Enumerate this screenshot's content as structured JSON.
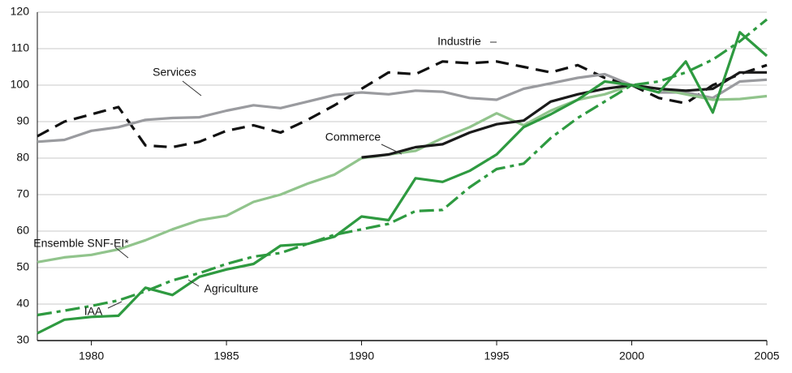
{
  "chart_data": {
    "type": "line",
    "x": [
      1978,
      1979,
      1980,
      1981,
      1982,
      1983,
      1984,
      1985,
      1986,
      1987,
      1988,
      1989,
      1990,
      1991,
      1992,
      1993,
      1994,
      1995,
      1996,
      1997,
      1998,
      1999,
      2000,
      2001,
      2002,
      2003,
      2004,
      2005
    ],
    "xlim": [
      1978,
      2005
    ],
    "xticks": [
      1980,
      1985,
      1990,
      1995,
      2000,
      2005
    ],
    "ylim": [
      30,
      120
    ],
    "yticks": [
      30,
      40,
      50,
      60,
      70,
      80,
      90,
      100,
      110,
      120
    ],
    "grid": true,
    "series": [
      {
        "name": "Industrie",
        "color": "#111111",
        "dash": "dashed",
        "values": [
          86,
          90,
          92,
          94,
          83.5,
          83,
          84.5,
          87.5,
          89,
          87,
          90.5,
          94.5,
          99,
          103.5,
          103,
          106.5,
          106,
          106.5,
          105,
          103.5,
          105.5,
          102,
          100,
          96.5,
          95,
          100,
          103,
          105.5
        ]
      },
      {
        "name": "Services",
        "color": "#9a9b9f",
        "dash": "solid",
        "values": [
          84.5,
          85,
          87.5,
          88.5,
          90.5,
          91,
          91.2,
          93,
          94.5,
          93.7,
          95.5,
          97.3,
          98,
          97.5,
          98.5,
          98.2,
          96.5,
          96,
          99,
          100.5,
          102,
          103,
          100,
          98,
          98,
          96.5,
          101,
          101.5
        ]
      },
      {
        "name": "Commerce",
        "color": "#91c48c",
        "dash": "solid",
        "values": [
          51.5,
          52.8,
          53.5,
          55,
          57.5,
          60.5,
          63,
          64.2,
          68,
          70,
          73,
          75.5,
          80,
          81,
          82,
          85.5,
          88.5,
          92.3,
          89,
          93,
          96,
          97.5,
          100,
          99,
          97.5,
          96,
          96.2,
          97
        ]
      },
      {
        "name": "Ensemble SNF-EI*",
        "color": "#1a1a1a",
        "dash": "solid",
        "values": [
          null,
          null,
          null,
          null,
          null,
          null,
          null,
          null,
          null,
          null,
          null,
          null,
          80.2,
          81,
          83,
          83.8,
          87,
          89.3,
          90.3,
          95.5,
          97.5,
          99,
          100,
          99,
          98.5,
          99,
          103.5,
          103.5
        ]
      },
      {
        "name": "IAA",
        "color": "#2e9a40",
        "dash": "dashdot",
        "values": [
          37,
          38.2,
          39.5,
          41,
          43.5,
          46.5,
          48.5,
          51,
          53,
          54,
          56.5,
          59,
          60.5,
          62,
          65.5,
          65.8,
          72,
          77,
          78.5,
          85.5,
          91,
          95.5,
          100,
          101,
          103.5,
          107,
          112,
          118
        ]
      },
      {
        "name": "Agriculture",
        "color": "#2e9a40",
        "dash": "solid",
        "values": [
          32,
          35.7,
          36.5,
          36.8,
          44.5,
          42.5,
          47.5,
          49.5,
          51,
          56,
          56.5,
          58.5,
          64,
          63,
          74.5,
          73.5,
          76.5,
          81,
          88.5,
          92,
          96,
          101,
          100,
          98,
          106.5,
          92.5,
          114.5,
          108
        ]
      }
    ]
  }
}
